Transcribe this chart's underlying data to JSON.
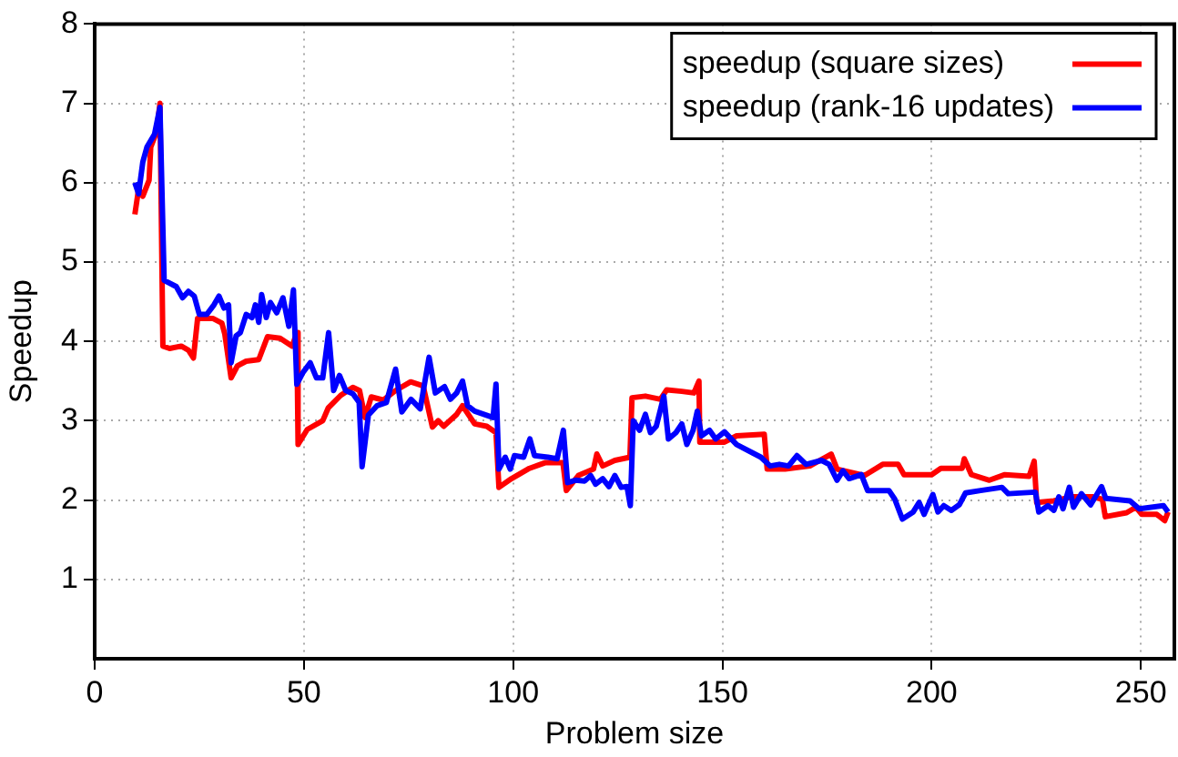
{
  "chart_data": {
    "type": "line",
    "xlabel": "Problem size",
    "ylabel": "Speedup",
    "xlim": [
      0,
      258
    ],
    "xticks": [
      0,
      50,
      100,
      150,
      200,
      250
    ],
    "ylim": [
      0,
      8
    ],
    "yticks": [
      1,
      2,
      3,
      4,
      5,
      6,
      7,
      8
    ],
    "grid": true,
    "legend": "top right",
    "marker": "none",
    "line_style": "solid",
    "series": [
      {
        "name": "speedup (square sizes)",
        "color": "#ff0000",
        "x": [
          9.6,
          10.5,
          11.5,
          13,
          13.4,
          14.8,
          15.6,
          16.3,
          17.9,
          20.7,
          22.4,
          23.6,
          24.6,
          28.2,
          30.4,
          31.1,
          32.6,
          34.1,
          36.2,
          39.2,
          41.3,
          44.3,
          47.2,
          48.3,
          48.6,
          50.8,
          54.5,
          55.8,
          58.8,
          61.7,
          63.3,
          64.6,
          66.1,
          69,
          71.9,
          75.5,
          78.5,
          80.7,
          82.1,
          83.4,
          86.5,
          87.9,
          90.8,
          93.7,
          95.9,
          96.6,
          99.6,
          103.9,
          107.6,
          111.9,
          112.7,
          115.6,
          119.2,
          120,
          121.4,
          124.3,
          127.9,
          128.4,
          131.6,
          135.2,
          136.7,
          140.3,
          143.2,
          144.4,
          144.6,
          150.5,
          153.4,
          160,
          160.7,
          165,
          170.9,
          176,
          177.4,
          184,
          188.3,
          192,
          193.4,
          200,
          202.2,
          207.3,
          207.8,
          209.5,
          213.8,
          217.5,
          223.3,
          224.5,
          225.1,
          229.2,
          233.5,
          238.6,
          240.8,
          241.5,
          246.6,
          248.8,
          250.2,
          253.8,
          255.7,
          256.5
        ],
        "values": [
          5.6,
          5.92,
          5.83,
          6.03,
          6.45,
          6.64,
          7.0,
          3.94,
          3.91,
          3.94,
          3.89,
          3.79,
          4.29,
          4.29,
          4.23,
          4.09,
          3.54,
          3.69,
          3.75,
          3.77,
          4.06,
          4.04,
          3.94,
          4.11,
          2.7,
          2.89,
          3.0,
          3.16,
          3.32,
          3.42,
          3.38,
          3.04,
          3.3,
          3.26,
          3.38,
          3.49,
          3.44,
          2.92,
          3.0,
          2.93,
          3.08,
          3.19,
          2.96,
          2.93,
          2.85,
          2.16,
          2.27,
          2.4,
          2.47,
          2.47,
          2.12,
          2.31,
          2.39,
          2.58,
          2.43,
          2.5,
          2.54,
          3.29,
          3.31,
          3.27,
          3.39,
          3.37,
          3.35,
          3.5,
          2.73,
          2.73,
          2.81,
          2.83,
          2.39,
          2.39,
          2.43,
          2.58,
          2.39,
          2.31,
          2.45,
          2.45,
          2.32,
          2.32,
          2.4,
          2.4,
          2.52,
          2.32,
          2.25,
          2.32,
          2.3,
          2.49,
          1.97,
          1.99,
          2.04,
          2.04,
          2.01,
          1.79,
          1.84,
          1.91,
          1.82,
          1.82,
          1.74,
          1.85
        ]
      },
      {
        "name": "speedup (rank-16 updates)",
        "color": "#0000ff",
        "x": [
          9.6,
          10.5,
          11.5,
          12.5,
          14.3,
          15.6,
          16.6,
          19.5,
          21,
          22.4,
          23.8,
          25,
          26.8,
          28.5,
          29.7,
          30.9,
          32,
          32.6,
          33.8,
          34.8,
          36.2,
          37.6,
          38.4,
          39.2,
          39.9,
          41,
          42,
          43.5,
          45,
          46.4,
          47.5,
          48.3,
          49.8,
          51.5,
          53,
          54.5,
          55.9,
          57.1,
          58.5,
          60,
          61.7,
          63.2,
          63.9,
          65.4,
          67.5,
          69.7,
          71.9,
          73.4,
          75.6,
          77.8,
          79.9,
          81.4,
          83.6,
          85,
          86.5,
          87.9,
          89.1,
          90.8,
          93,
          95.2,
          95.9,
          96.6,
          98.1,
          99.3,
          100.3,
          102.5,
          104,
          105.1,
          108.3,
          110.5,
          112,
          113,
          114.9,
          117.1,
          118.5,
          119.7,
          121.4,
          122.9,
          124.3,
          125.8,
          127.2,
          128,
          128.7,
          130.2,
          131.6,
          132.8,
          134.2,
          136,
          137.1,
          138.9,
          140.3,
          141.5,
          143,
          144,
          145,
          146.9,
          148.4,
          150.5,
          153.4,
          159.2,
          161.4,
          163.6,
          165.8,
          167.8,
          170,
          173.7,
          175.5,
          177.4,
          178.8,
          180.3,
          183.2,
          184.7,
          189.8,
          191.2,
          193,
          195.6,
          197,
          198.2,
          200.3,
          201.5,
          202.9,
          204.7,
          206.6,
          208.1,
          211.7,
          216.8,
          218.3,
          224.8,
          225.6,
          227.8,
          229.2,
          230.4,
          231.4,
          232.9,
          233.9,
          235.8,
          238,
          240.6,
          241.6,
          247.4,
          249.6,
          255.4,
          256.5
        ],
        "values": [
          6.0,
          5.86,
          6.26,
          6.45,
          6.61,
          6.95,
          4.77,
          4.69,
          4.55,
          4.63,
          4.57,
          4.34,
          4.34,
          4.46,
          4.57,
          4.42,
          4.46,
          3.73,
          4.07,
          4.11,
          4.34,
          4.3,
          4.46,
          4.24,
          4.59,
          4.3,
          4.49,
          4.36,
          4.55,
          4.19,
          4.65,
          3.46,
          3.61,
          3.73,
          3.54,
          3.54,
          4.11,
          3.38,
          3.57,
          3.38,
          3.34,
          3.23,
          2.42,
          3.07,
          3.19,
          3.23,
          3.65,
          3.11,
          3.27,
          3.15,
          3.8,
          3.35,
          3.43,
          3.27,
          3.35,
          3.5,
          3.19,
          3.12,
          3.08,
          3.04,
          3.46,
          2.39,
          2.54,
          2.39,
          2.56,
          2.54,
          2.77,
          2.56,
          2.54,
          2.52,
          2.88,
          2.22,
          2.25,
          2.24,
          2.31,
          2.2,
          2.27,
          2.17,
          2.31,
          2.16,
          2.17,
          1.93,
          3.0,
          2.88,
          3.08,
          2.85,
          2.93,
          3.31,
          2.77,
          2.85,
          2.96,
          2.7,
          2.88,
          3.12,
          2.81,
          2.88,
          2.77,
          2.86,
          2.7,
          2.54,
          2.43,
          2.45,
          2.43,
          2.56,
          2.45,
          2.5,
          2.45,
          2.25,
          2.37,
          2.27,
          2.32,
          2.12,
          2.12,
          2.01,
          1.76,
          1.85,
          1.97,
          1.82,
          2.07,
          1.85,
          1.93,
          1.87,
          1.94,
          2.09,
          2.12,
          2.16,
          2.08,
          2.1,
          1.85,
          1.93,
          1.87,
          2.04,
          1.89,
          2.16,
          1.91,
          2.08,
          1.94,
          2.17,
          2.02,
          1.99,
          1.89,
          1.93,
          1.85
        ]
      }
    ]
  }
}
